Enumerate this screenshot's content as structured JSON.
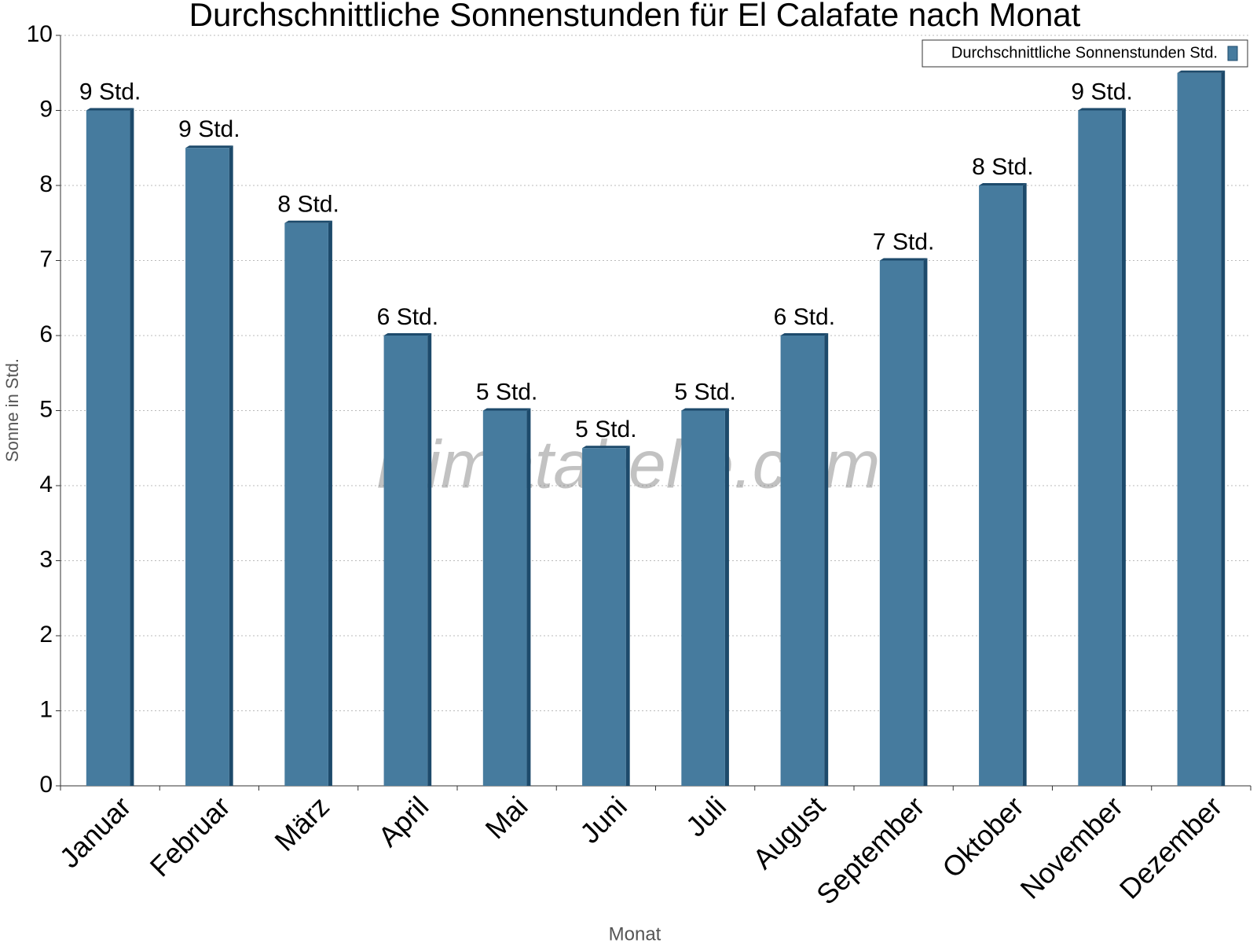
{
  "chart_data": {
    "type": "bar",
    "title": "Durchschnittliche Sonnenstunden für El Calafate nach Monat",
    "x_label": "Monat",
    "y_label": "Sonne in Std.",
    "watermark": "klimatabelle.com",
    "categories": [
      "Januar",
      "Februar",
      "März",
      "April",
      "Mai",
      "Juni",
      "Juli",
      "August",
      "September",
      "Oktober",
      "November",
      "Dezember"
    ],
    "series": [
      {
        "name": "Durchschnittliche Sonnenstunden Std.",
        "color": "#467b9e",
        "values": [
          9,
          8.5,
          7.5,
          6,
          5,
          4.5,
          5,
          6,
          7,
          8,
          9,
          9.5
        ],
        "value_labels": [
          "9 Std.",
          "9 Std.",
          "8 Std.",
          "6 Std.",
          "5 Std.",
          "5 Std.",
          "5 Std.",
          "6 Std.",
          "7 Std.",
          "8 Std.",
          "9 Std.",
          null
        ]
      }
    ],
    "ylim": [
      0,
      10
    ],
    "yticks": [
      0,
      1,
      2,
      3,
      4,
      5,
      6,
      7,
      8,
      9,
      10
    ],
    "grid": true,
    "legend": "top-right"
  }
}
